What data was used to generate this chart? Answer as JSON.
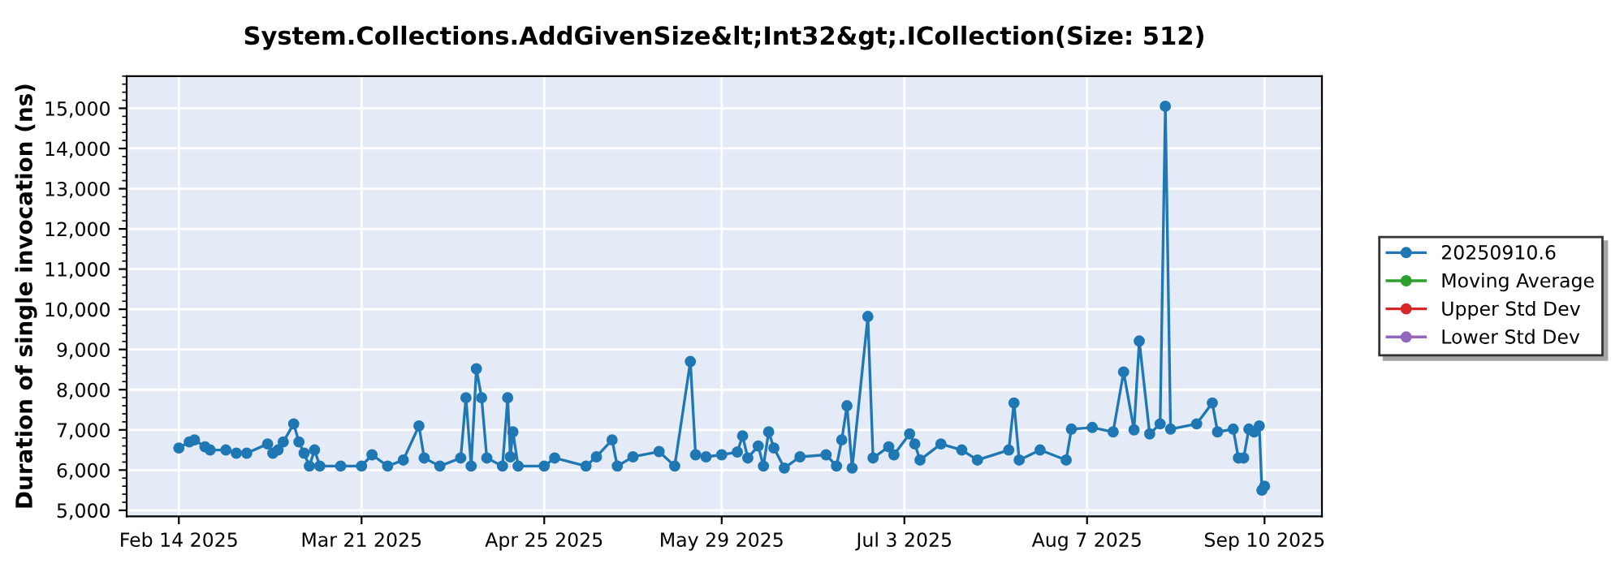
{
  "chart_data": {
    "type": "line",
    "title": "System.Collections.AddGivenSize&lt;Int32&gt;.ICollection(Size: 512)",
    "ylabel": "Duration of single invocation (ns)",
    "xlim": [
      "2025-02-04",
      "2025-09-21"
    ],
    "xticks": [
      {
        "value": "2025-02-14",
        "label": "Feb 14 2025"
      },
      {
        "value": "2025-03-21",
        "label": "Mar 21 2025"
      },
      {
        "value": "2025-04-25",
        "label": "Apr 25 2025"
      },
      {
        "value": "2025-05-29",
        "label": "May 29 2025"
      },
      {
        "value": "2025-07-03",
        "label": "Jul 3 2025"
      },
      {
        "value": "2025-08-07",
        "label": "Aug 7 2025"
      },
      {
        "value": "2025-09-10",
        "label": "Sep 10 2025"
      }
    ],
    "ylim": [
      4850,
      15800
    ],
    "yticks": [
      {
        "value": 5000,
        "label": "5,000"
      },
      {
        "value": 6000,
        "label": "6,000"
      },
      {
        "value": 7000,
        "label": "7,000"
      },
      {
        "value": 8000,
        "label": "8,000"
      },
      {
        "value": 9000,
        "label": "9,000"
      },
      {
        "value": 10000,
        "label": "10,000"
      },
      {
        "value": 11000,
        "label": "11,000"
      },
      {
        "value": 12000,
        "label": "12,000"
      },
      {
        "value": 13000,
        "label": "13,000"
      },
      {
        "value": 14000,
        "label": "14,000"
      },
      {
        "value": 15000,
        "label": "15,000"
      }
    ],
    "grid": true,
    "legend": "right",
    "marker": "circle",
    "line_style": "solid",
    "series": [
      {
        "name": "20250910.6",
        "color": "#1f77b4",
        "x": [
          "2025-02-14",
          "2025-02-16",
          "2025-02-17",
          "2025-02-19",
          "2025-02-20",
          "2025-02-23",
          "2025-02-25",
          "2025-02-27",
          "2025-03-03",
          "2025-03-04",
          "2025-03-05",
          "2025-03-06",
          "2025-03-08",
          "2025-03-09",
          "2025-03-10",
          "2025-03-11",
          "2025-03-12",
          "2025-03-13",
          "2025-03-17",
          "2025-03-21",
          "2025-03-23",
          "2025-03-26",
          "2025-03-29",
          "2025-04-01",
          "2025-04-02",
          "2025-04-05",
          "2025-04-09",
          "2025-04-10",
          "2025-04-11",
          "2025-04-12",
          "2025-04-13",
          "2025-04-14",
          "2025-04-17",
          "2025-04-18",
          "2025-04-18T12:00",
          "2025-04-19",
          "2025-04-20",
          "2025-04-25",
          "2025-04-27",
          "2025-05-03",
          "2025-05-05",
          "2025-05-08",
          "2025-05-09",
          "2025-05-12",
          "2025-05-17",
          "2025-05-20",
          "2025-05-23",
          "2025-05-24",
          "2025-05-26",
          "2025-05-29",
          "2025-06-01",
          "2025-06-02",
          "2025-06-03",
          "2025-06-05",
          "2025-06-06",
          "2025-06-07",
          "2025-06-08",
          "2025-06-10",
          "2025-06-13",
          "2025-06-18",
          "2025-06-20",
          "2025-06-21",
          "2025-06-22",
          "2025-06-23",
          "2025-06-26",
          "2025-06-27",
          "2025-06-30",
          "2025-07-01",
          "2025-07-04",
          "2025-07-05",
          "2025-07-06",
          "2025-07-10",
          "2025-07-14",
          "2025-07-17",
          "2025-07-23",
          "2025-07-24",
          "2025-07-25",
          "2025-07-29",
          "2025-08-03",
          "2025-08-04",
          "2025-08-08",
          "2025-08-12",
          "2025-08-14",
          "2025-08-16",
          "2025-08-17",
          "2025-08-19",
          "2025-08-21",
          "2025-08-22",
          "2025-08-23",
          "2025-08-28",
          "2025-08-31",
          "2025-09-01",
          "2025-09-04",
          "2025-09-05",
          "2025-09-06",
          "2025-09-07",
          "2025-09-08",
          "2025-09-09",
          "2025-09-09T12:00",
          "2025-09-10"
        ],
        "values": [
          6550,
          6700,
          6750,
          6580,
          6500,
          6500,
          6420,
          6420,
          6650,
          6420,
          6500,
          6700,
          7150,
          6700,
          6420,
          6100,
          6500,
          6100,
          6100,
          6100,
          6380,
          6100,
          6250,
          7100,
          6300,
          6100,
          6300,
          7800,
          6100,
          8520,
          7800,
          6300,
          6100,
          7800,
          6330,
          6950,
          6100,
          6100,
          6300,
          6100,
          6330,
          6750,
          6100,
          6330,
          6460,
          6100,
          8700,
          6380,
          6330,
          6380,
          6450,
          6850,
          6300,
          6600,
          6100,
          6950,
          6550,
          6050,
          6330,
          6380,
          6100,
          6750,
          7600,
          6050,
          9820,
          6300,
          6580,
          6380,
          6900,
          6650,
          6250,
          6650,
          6500,
          6250,
          6500,
          7670,
          6250,
          6500,
          6250,
          7020,
          7060,
          6950,
          8440,
          7000,
          9210,
          6900,
          7150,
          15050,
          7020,
          7150,
          7670,
          6950,
          7020,
          6300,
          6300,
          7020,
          6950,
          7100,
          5500,
          5600
        ]
      },
      {
        "name": "Moving Average",
        "color": "#2ca02c"
      },
      {
        "name": "Upper Std Dev",
        "color": "#d62728"
      },
      {
        "name": "Lower Std Dev",
        "color": "#9467bd"
      }
    ]
  }
}
